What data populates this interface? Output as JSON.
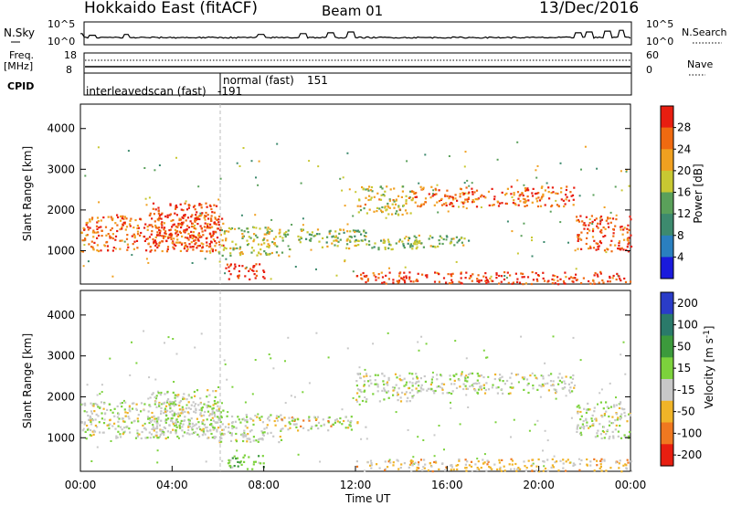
{
  "header": {
    "radar": "Hokkaido East (fitACF)",
    "beam": "Beam 01",
    "date": "13/Dec/2016"
  },
  "nsky": {
    "label": "N.Sky",
    "left_ticks": [
      "10^5",
      "10^0"
    ],
    "right_ticks": [
      "10^5",
      "10^0"
    ],
    "right_label": "N.Search",
    "bursts": [
      {
        "t": 0.0,
        "h": 0.4
      },
      {
        "t": 0.5,
        "h": 0.3
      },
      {
        "t": 2.0,
        "h": 0.35
      },
      {
        "t": 7.9,
        "h": 0.35
      },
      {
        "t": 9.7,
        "h": 0.4
      },
      {
        "t": 10.9,
        "h": 0.45
      },
      {
        "t": 11.8,
        "h": 0.5
      },
      {
        "t": 21.7,
        "h": 0.45
      },
      {
        "t": 22.2,
        "h": 0.5
      },
      {
        "t": 23.0,
        "h": 0.55
      },
      {
        "t": 23.6,
        "h": 0.6
      }
    ]
  },
  "freq": {
    "label": "Freq.",
    "unit": "[MHz]",
    "left_ticks": [
      "18",
      "8"
    ],
    "right_ticks": [
      "60",
      "0"
    ],
    "right_label": "Nave"
  },
  "cpid": {
    "label": "CPID",
    "modes": [
      {
        "name": "interleavedscan (fast)",
        "id": "-191",
        "start_hours": 0
      },
      {
        "name": "normal (fast)",
        "id": "151",
        "start_hours": 6
      }
    ]
  },
  "chart_data": [
    {
      "type": "heatmap",
      "name": "power",
      "ylabel": "Slant Range [km]",
      "ylim": [
        180,
        4600
      ],
      "yticks": [
        1000,
        2000,
        3000,
        4000
      ],
      "xlim": [
        0,
        24
      ],
      "colorbar": {
        "label": "Power [dB]",
        "range": [
          0,
          32
        ],
        "ticks": [
          4,
          8,
          12,
          16,
          20,
          24,
          28
        ],
        "colors": [
          "#1a1adc",
          "#2a7fbf",
          "#3d8a6e",
          "#5aa05a",
          "#c8c832",
          "#f0a020",
          "#f06a10",
          "#e81e10"
        ]
      },
      "bands": [
        {
          "t0": 0.0,
          "t1": 6.2,
          "r0": 1000,
          "r1": 1900,
          "level": 0.82
        },
        {
          "t0": 3.0,
          "t1": 6.0,
          "r0": 1100,
          "r1": 2200,
          "level": 0.92
        },
        {
          "t0": 6.0,
          "t1": 8.8,
          "r0": 900,
          "r1": 1600,
          "level": 0.55
        },
        {
          "t0": 6.3,
          "t1": 8.0,
          "r0": 300,
          "r1": 700,
          "level": 0.95
        },
        {
          "t0": 8.5,
          "t1": 12.5,
          "r0": 1200,
          "r1": 1550,
          "level": 0.5
        },
        {
          "t0": 10.5,
          "t1": 14.8,
          "r0": 1050,
          "r1": 1300,
          "level": 0.52
        },
        {
          "t0": 12.0,
          "t1": 24.0,
          "r0": 200,
          "r1": 500,
          "level": 0.9
        },
        {
          "t0": 12.0,
          "t1": 14.5,
          "r0": 1900,
          "r1": 2600,
          "level": 0.6
        },
        {
          "t0": 14.5,
          "t1": 21.5,
          "r0": 2100,
          "r1": 2600,
          "level": 0.82
        },
        {
          "t0": 14.0,
          "t1": 17.0,
          "r0": 1100,
          "r1": 1400,
          "level": 0.5
        },
        {
          "t0": 21.6,
          "t1": 24.0,
          "r0": 1000,
          "r1": 1900,
          "level": 0.85
        }
      ]
    },
    {
      "type": "heatmap",
      "name": "velocity",
      "ylabel": "Slant Range [km]",
      "ylim": [
        180,
        4600
      ],
      "yticks": [
        1000,
        2000,
        3000,
        4000
      ],
      "xlim": [
        0,
        24
      ],
      "colorbar": {
        "label": "Velocity [m s^-1]",
        "ticks": [
          "200",
          "100",
          "50",
          "15",
          "-15",
          "-50",
          "-100",
          "-200"
        ],
        "colors": [
          "#2a3cc8",
          "#2a7a6a",
          "#3c9a3c",
          "#7cd23c",
          "#c8c8c8",
          "#f0b428",
          "#f07820",
          "#e81e10"
        ]
      },
      "bands": [
        {
          "t0": 0.0,
          "t1": 6.2,
          "r0": 1000,
          "r1": 1900,
          "cls": "gray"
        },
        {
          "t0": 3.0,
          "t1": 6.0,
          "r0": 1100,
          "r1": 2200,
          "cls": "gray"
        },
        {
          "t0": 6.0,
          "t1": 8.8,
          "r0": 900,
          "r1": 1600,
          "cls": "gray"
        },
        {
          "t0": 6.3,
          "t1": 8.0,
          "r0": 250,
          "r1": 600,
          "cls": "green"
        },
        {
          "t0": 8.5,
          "t1": 12.5,
          "r0": 1200,
          "r1": 1550,
          "cls": "mixed"
        },
        {
          "t0": 12.0,
          "t1": 24.0,
          "r0": 200,
          "r1": 500,
          "cls": "orange"
        },
        {
          "t0": 12.0,
          "t1": 14.5,
          "r0": 1900,
          "r1": 2600,
          "cls": "gray"
        },
        {
          "t0": 14.5,
          "t1": 21.5,
          "r0": 2100,
          "r1": 2600,
          "cls": "gray"
        },
        {
          "t0": 21.6,
          "t1": 24.0,
          "r0": 1000,
          "r1": 1900,
          "cls": "gray"
        }
      ]
    }
  ],
  "x_axis": {
    "label": "Time UT",
    "ticks": [
      "00:00",
      "04:00",
      "08:00",
      "12:00",
      "16:00",
      "20:00",
      "00:00"
    ]
  }
}
